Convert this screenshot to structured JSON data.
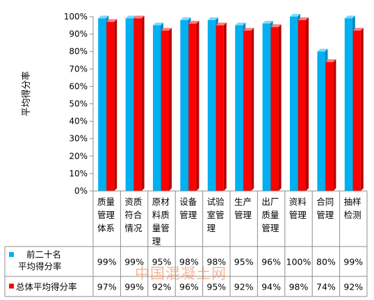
{
  "chart_data": {
    "type": "bar",
    "ylabel": "平均得分率",
    "ylim": [
      0,
      100
    ],
    "y_ticks": [
      "0%",
      "10%",
      "20%",
      "30%",
      "40%",
      "50%",
      "60%",
      "70%",
      "80%",
      "90%",
      "100%"
    ],
    "categories": [
      [
        "质量",
        "管理",
        "体系"
      ],
      [
        "资质",
        "符合",
        "情况"
      ],
      [
        "原材",
        "料质",
        "量管",
        "理"
      ],
      [
        "设备",
        "管理"
      ],
      [
        "试验",
        "室管",
        "理"
      ],
      [
        "生产",
        "管理"
      ],
      [
        "出厂",
        "质量",
        "管理"
      ],
      [
        "资料",
        "管理"
      ],
      [
        "合同",
        "管理"
      ],
      [
        "抽样",
        "检测"
      ]
    ],
    "series": [
      {
        "name": [
          "前二十名",
          "平均得分率"
        ],
        "color": "#00b0f0",
        "values": [
          99,
          99,
          95,
          98,
          98,
          95,
          96,
          100,
          80,
          99
        ],
        "labels": [
          "99%",
          "99%",
          "95%",
          "98%",
          "98%",
          "95%",
          "96%",
          "100%",
          "80%",
          "99%"
        ]
      },
      {
        "name": [
          "总体平均得分率"
        ],
        "color": "#ff0000",
        "values": [
          97,
          99,
          92,
          96,
          95,
          92,
          94,
          98,
          74,
          92
        ],
        "labels": [
          "97%",
          "99%",
          "92%",
          "96%",
          "95%",
          "92%",
          "94%",
          "98%",
          "74%",
          "92%"
        ]
      }
    ],
    "grid": false,
    "legend": "bottom-left, inside data table"
  },
  "watermark": "中国混凝土网"
}
